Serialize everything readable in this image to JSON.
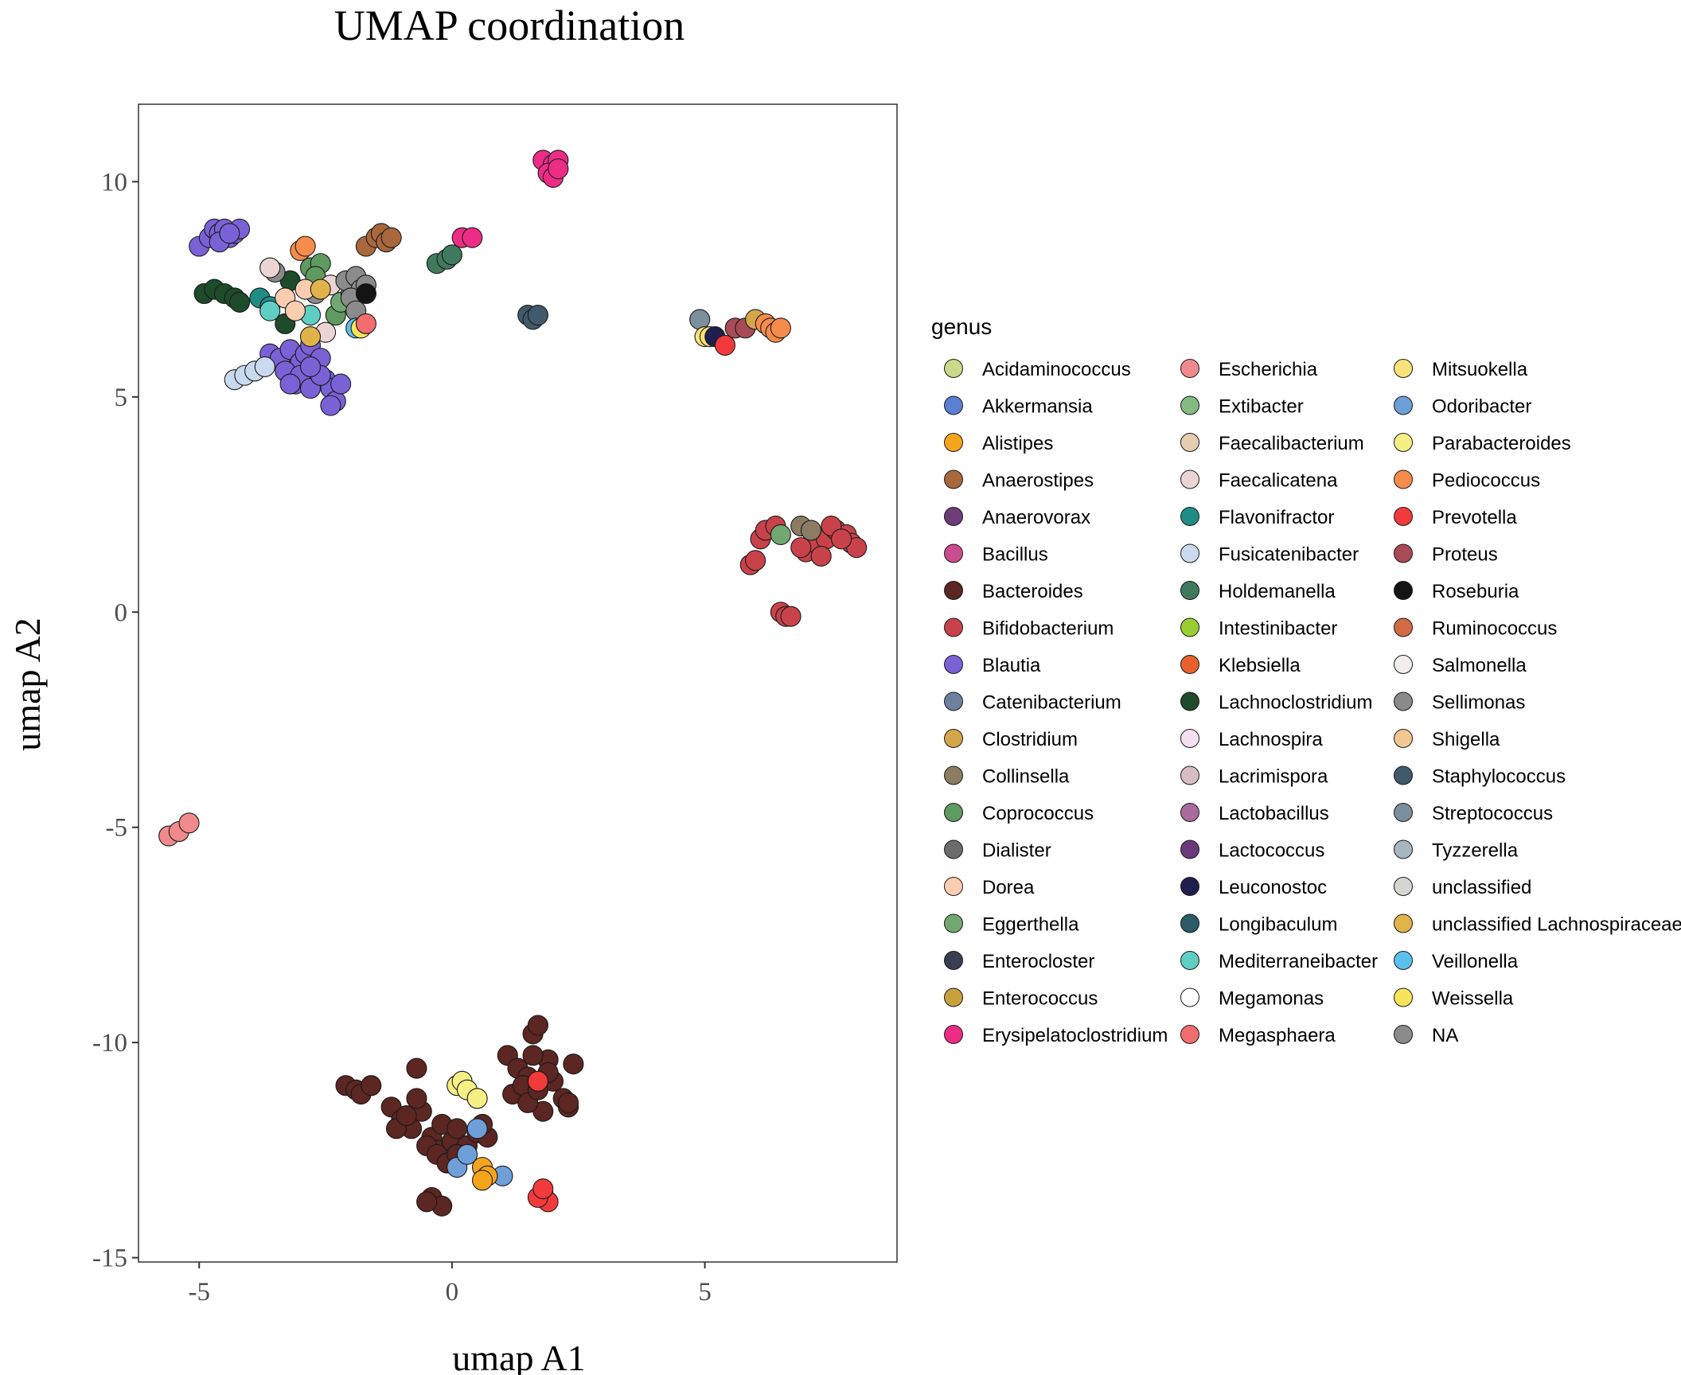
{
  "chart_data": {
    "type": "scatter",
    "title": "UMAP coordination",
    "xlabel": "umap A1",
    "ylabel": "umap A2",
    "xlim": [
      -6.2,
      8.8
    ],
    "ylim": [
      -15.1,
      11.8
    ],
    "xticks": [
      -5,
      0,
      5
    ],
    "yticks": [
      10,
      5,
      0,
      -5,
      -10,
      -15
    ],
    "grid": false,
    "legend_title": "genus",
    "legend_position": "right",
    "genera": [
      {
        "name": "Acidaminococcus",
        "color": "#c8d98a"
      },
      {
        "name": "Akkermansia",
        "color": "#5b7fd1"
      },
      {
        "name": "Alistipes",
        "color": "#f5a51b"
      },
      {
        "name": "Anaerostipes",
        "color": "#a8683c"
      },
      {
        "name": "Anaerovorax",
        "color": "#6e3c79"
      },
      {
        "name": "Bacillus",
        "color": "#cc4c90"
      },
      {
        "name": "Bacteroides",
        "color": "#5c2622"
      },
      {
        "name": "Bifidobacterium",
        "color": "#c9424a"
      },
      {
        "name": "Blautia",
        "color": "#7b61d6"
      },
      {
        "name": "Catenibacterium",
        "color": "#6e80a0"
      },
      {
        "name": "Clostridium",
        "color": "#d4a64a"
      },
      {
        "name": "Collinsella",
        "color": "#8c7c64"
      },
      {
        "name": "Coprococcus",
        "color": "#5f9a5f"
      },
      {
        "name": "Dialister",
        "color": "#6c6c6c"
      },
      {
        "name": "Dorea",
        "color": "#fbcdb0"
      },
      {
        "name": "Eggerthella",
        "color": "#71a871"
      },
      {
        "name": "Enterocloster",
        "color": "#3a3e52"
      },
      {
        "name": "Enterococcus",
        "color": "#c9a13c"
      },
      {
        "name": "Erysipelatoclostridium",
        "color": "#ed2c86"
      },
      {
        "name": "Escherichia",
        "color": "#f08a8d"
      },
      {
        "name": "Extibacter",
        "color": "#83bb83"
      },
      {
        "name": "Faecalibacterium",
        "color": "#e5cdb0"
      },
      {
        "name": "Faecalicatena",
        "color": "#ecd4d4"
      },
      {
        "name": "Flavonifractor",
        "color": "#1f8c86"
      },
      {
        "name": "Fusicatenibacter",
        "color": "#c9daee"
      },
      {
        "name": "Holdemanella",
        "color": "#3f7a5c"
      },
      {
        "name": "Intestinibacter",
        "color": "#9acd32"
      },
      {
        "name": "Klebsiella",
        "color": "#e8612c"
      },
      {
        "name": "Lachnoclostridium",
        "color": "#1e4b2a"
      },
      {
        "name": "Lachnospira",
        "color": "#f3dff0"
      },
      {
        "name": "Lacrimispora",
        "color": "#d8bcc4"
      },
      {
        "name": "Lactobacillus",
        "color": "#a86b9b"
      },
      {
        "name": "Lactococcus",
        "color": "#6c3a7a"
      },
      {
        "name": "Leuconostoc",
        "color": "#1f1f4f"
      },
      {
        "name": "Longibaculum",
        "color": "#2c5a66"
      },
      {
        "name": "Mediterraneibacter",
        "color": "#5fcfc4"
      },
      {
        "name": "Megamonas",
        "color": "#ffffff"
      },
      {
        "name": "Megasphaera",
        "color": "#f26d6d"
      },
      {
        "name": "Mitsuokella",
        "color": "#f9e27a"
      },
      {
        "name": "Odoribacter",
        "color": "#6e9fd8"
      },
      {
        "name": "Parabacteroides",
        "color": "#f6ef84"
      },
      {
        "name": "Pediococcus",
        "color": "#f58c4c"
      },
      {
        "name": "Prevotella",
        "color": "#f23a3a"
      },
      {
        "name": "Proteus",
        "color": "#a84b56"
      },
      {
        "name": "Roseburia",
        "color": "#141414"
      },
      {
        "name": "Ruminococcus",
        "color": "#d36a46"
      },
      {
        "name": "Salmonella",
        "color": "#f3eeee"
      },
      {
        "name": "Sellimonas",
        "color": "#8a8a8a"
      },
      {
        "name": "Shigella",
        "color": "#f1c792"
      },
      {
        "name": "Staphylococcus",
        "color": "#405a6c"
      },
      {
        "name": "Streptococcus",
        "color": "#7b8f9c"
      },
      {
        "name": "Tyzzerella",
        "color": "#a8b6c2"
      },
      {
        "name": "unclassified",
        "color": "#d6d6d0"
      },
      {
        "name": "unclassified Lachnospiraceae",
        "color": "#e0b34a"
      },
      {
        "name": "Veillonella",
        "color": "#5cc0ef"
      },
      {
        "name": "Weissella",
        "color": "#f7e45c"
      },
      {
        "name": "NA",
        "color": "#8b8b8b"
      }
    ],
    "points": [
      {
        "genus": "Blautia",
        "x": [
          -5.0,
          -4.8,
          -4.7,
          -4.6,
          -4.5,
          -4.4,
          -4.3,
          -4.2,
          -4.6,
          -4.4
        ],
        "y": [
          8.5,
          8.7,
          8.9,
          8.8,
          8.9,
          8.7,
          8.8,
          8.9,
          8.6,
          8.8
        ]
      },
      {
        "genus": "Blautia",
        "x": [
          -3.6,
          -3.4,
          -3.2,
          -3.0,
          -2.9,
          -2.8,
          -2.7,
          -2.6,
          -3.3,
          -3.1,
          -2.5,
          -2.4,
          -2.3,
          -2.2,
          -3.0,
          -2.8,
          -2.6,
          -2.4,
          -2.8,
          -3.2
        ],
        "y": [
          6.0,
          5.9,
          6.1,
          5.8,
          6.0,
          6.2,
          5.7,
          5.9,
          5.6,
          5.3,
          5.4,
          5.2,
          4.9,
          5.3,
          5.5,
          5.2,
          5.5,
          4.8,
          5.7,
          5.3
        ]
      },
      {
        "genus": "Fusicatenibacter",
        "x": [
          -4.3,
          -4.1,
          -3.9,
          -3.7
        ],
        "y": [
          5.4,
          5.5,
          5.6,
          5.7
        ]
      },
      {
        "genus": "Lachnoclostridium",
        "x": [
          -4.9,
          -4.7,
          -4.5,
          -4.3,
          -4.2,
          -3.3,
          -3.2
        ],
        "y": [
          7.4,
          7.5,
          7.4,
          7.3,
          7.2,
          6.7,
          7.7
        ]
      },
      {
        "genus": "Flavonifractor",
        "x": [
          -3.8,
          -3.6
        ],
        "y": [
          7.3,
          7.1
        ]
      },
      {
        "genus": "Mediterraneibacter",
        "x": [
          -3.6,
          -2.8
        ],
        "y": [
          7.0,
          6.9
        ]
      },
      {
        "genus": "Pediococcus",
        "x": [
          -3.0,
          -2.9
        ],
        "y": [
          8.4,
          8.5
        ]
      },
      {
        "genus": "Coprococcus",
        "x": [
          -2.8,
          -2.6,
          -2.7,
          -2.3
        ],
        "y": [
          8.0,
          8.1,
          7.8,
          6.9
        ]
      },
      {
        "genus": "Eggerthella",
        "x": [
          -2.2,
          -2.0
        ],
        "y": [
          7.2,
          7.4
        ]
      },
      {
        "genus": "Sellimonas",
        "x": [
          -3.5,
          -2.7
        ],
        "y": [
          7.9,
          7.4
        ]
      },
      {
        "genus": "Dorea",
        "x": [
          -3.3,
          -2.9,
          -3.1
        ],
        "y": [
          7.3,
          7.5,
          7.0
        ]
      },
      {
        "genus": "Faecalicatena",
        "x": [
          -3.6,
          -2.5,
          -2.4
        ],
        "y": [
          8.0,
          6.5,
          7.6
        ]
      },
      {
        "genus": "unclassified Lachnospiraceae",
        "x": [
          -2.6,
          -2.8
        ],
        "y": [
          7.5,
          6.4
        ]
      },
      {
        "genus": "NA",
        "x": [
          -2.1,
          -1.9,
          -1.8,
          -2.0,
          -1.7,
          -1.9
        ],
        "y": [
          7.7,
          7.8,
          7.5,
          7.3,
          7.6,
          7.0
        ]
      },
      {
        "genus": "Roseburia",
        "x": [
          -1.7
        ],
        "y": [
          7.4
        ]
      },
      {
        "genus": "Veillonella",
        "x": [
          -1.9
        ],
        "y": [
          6.6
        ]
      },
      {
        "genus": "Weissella",
        "x": [
          -1.8
        ],
        "y": [
          6.6
        ]
      },
      {
        "genus": "Megasphaera",
        "x": [
          -1.7
        ],
        "y": [
          6.7
        ]
      },
      {
        "genus": "Anaerostipes",
        "x": [
          -1.7,
          -1.5,
          -1.4,
          -1.3,
          -1.2
        ],
        "y": [
          8.5,
          8.7,
          8.8,
          8.6,
          8.7
        ]
      },
      {
        "genus": "Holdemanella",
        "x": [
          -0.3,
          -0.1,
          0.0
        ],
        "y": [
          8.1,
          8.2,
          8.3
        ]
      },
      {
        "genus": "Erysipelatoclostridium",
        "x": [
          0.2,
          0.4,
          1.8,
          2.0,
          2.1,
          1.9,
          2.0,
          2.1
        ],
        "y": [
          8.7,
          8.7,
          10.5,
          10.4,
          10.5,
          10.2,
          10.1,
          10.3
        ]
      },
      {
        "genus": "Staphylococcus",
        "x": [
          1.5,
          1.6,
          1.7
        ],
        "y": [
          6.9,
          6.8,
          6.9
        ]
      },
      {
        "genus": "Streptococcus",
        "x": [
          4.9
        ],
        "y": [
          6.8
        ]
      },
      {
        "genus": "Mitsuokella",
        "x": [
          5.0,
          5.1
        ],
        "y": [
          6.4,
          6.4
        ]
      },
      {
        "genus": "Leuconostoc",
        "x": [
          5.2
        ],
        "y": [
          6.4
        ]
      },
      {
        "genus": "Prevotella",
        "x": [
          5.4
        ],
        "y": [
          6.2
        ]
      },
      {
        "genus": "Proteus",
        "x": [
          5.6,
          5.8
        ],
        "y": [
          6.6,
          6.6
        ]
      },
      {
        "genus": "Clostridium",
        "x": [
          6.0
        ],
        "y": [
          6.8
        ]
      },
      {
        "genus": "Pediococcus",
        "x": [
          6.2,
          6.3,
          6.4,
          6.5
        ],
        "y": [
          6.7,
          6.6,
          6.5,
          6.6
        ]
      },
      {
        "genus": "Bifidobacterium",
        "x": [
          6.1,
          6.2,
          6.4,
          7.0,
          7.2,
          7.4,
          7.6,
          7.8,
          7.9,
          8.0,
          7.5,
          7.3,
          6.9,
          7.7,
          5.9,
          6.0,
          6.5,
          6.6,
          6.7
        ],
        "y": [
          1.7,
          1.9,
          2.0,
          1.4,
          1.6,
          1.7,
          1.9,
          1.8,
          1.6,
          1.5,
          2.0,
          1.3,
          1.5,
          1.7,
          1.1,
          1.2,
          0.0,
          -0.1,
          -0.1
        ]
      },
      {
        "genus": "Collinsella",
        "x": [
          6.9,
          7.1
        ],
        "y": [
          2.0,
          1.9
        ]
      },
      {
        "genus": "Eggerthella",
        "x": [
          6.5
        ],
        "y": [
          1.8
        ]
      },
      {
        "genus": "Escherichia",
        "x": [
          -5.6,
          -5.4,
          -5.2
        ],
        "y": [
          -5.2,
          -5.1,
          -4.9
        ]
      },
      {
        "genus": "Bacteroides",
        "x": [
          -2.1,
          -1.9,
          -1.8,
          -1.6,
          -1.2,
          -1.0,
          -0.8,
          -0.6,
          -0.4,
          -0.3,
          -0.2,
          0.0,
          0.1,
          0.3,
          0.5,
          0.7,
          -1.1,
          -0.9,
          -0.7,
          -0.5,
          -0.3,
          -0.1,
          0.6,
          -0.7,
          -0.4,
          -0.2,
          0.1,
          -0.5
        ],
        "y": [
          -11.0,
          -11.1,
          -11.2,
          -11.0,
          -11.5,
          -11.8,
          -12.0,
          -11.6,
          -12.2,
          -12.5,
          -11.9,
          -12.3,
          -12.0,
          -12.4,
          -12.1,
          -12.2,
          -12.0,
          -11.7,
          -11.3,
          -12.4,
          -12.6,
          -12.8,
          -11.9,
          -10.6,
          -13.6,
          -13.8,
          -12.6,
          -13.7
        ]
      },
      {
        "genus": "Bacteroides",
        "x": [
          1.1,
          1.3,
          1.5,
          1.6,
          1.7,
          1.9,
          2.0,
          2.2,
          2.3,
          2.4,
          1.2,
          1.4,
          1.6,
          1.8,
          1.5,
          1.7,
          1.9,
          2.3
        ],
        "y": [
          -10.3,
          -10.6,
          -10.8,
          -9.8,
          -9.6,
          -10.4,
          -10.9,
          -11.3,
          -11.5,
          -10.5,
          -11.2,
          -11.0,
          -10.3,
          -11.6,
          -11.4,
          -11.1,
          -10.7,
          -11.4
        ]
      },
      {
        "genus": "Parabacteroides",
        "x": [
          0.1,
          0.2,
          0.3,
          0.5
        ],
        "y": [
          -11.0,
          -10.9,
          -11.1,
          -11.3
        ]
      },
      {
        "genus": "Odoribacter",
        "x": [
          0.1,
          0.3,
          0.5,
          1.0
        ],
        "y": [
          -12.9,
          -12.6,
          -12.0,
          -13.1
        ]
      },
      {
        "genus": "Alistipes",
        "x": [
          0.6,
          0.7,
          0.6
        ],
        "y": [
          -12.9,
          -13.1,
          -13.2
        ]
      },
      {
        "genus": "Prevotella",
        "x": [
          1.7,
          1.8,
          1.9,
          1.7,
          1.8
        ],
        "y": [
          -10.9,
          -13.5,
          -13.7,
          -13.6,
          -13.4
        ]
      }
    ]
  }
}
